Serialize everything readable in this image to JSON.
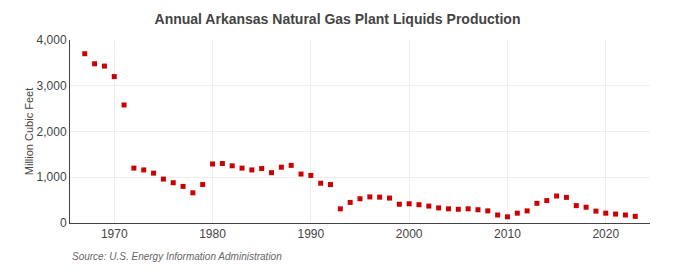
{
  "chart_data": {
    "type": "scatter",
    "title": "Annual Arkansas Natural Gas Plant Liquids Production",
    "ylabel": "Million Cubic Feet",
    "annotations": [
      "Source: U.S. Energy Information Administration"
    ],
    "x": [
      1967,
      1968,
      1969,
      1970,
      1971,
      1972,
      1973,
      1974,
      1975,
      1976,
      1977,
      1978,
      1979,
      1980,
      1981,
      1982,
      1983,
      1984,
      1985,
      1986,
      1987,
      1988,
      1989,
      1990,
      1991,
      1992,
      1993,
      1994,
      1995,
      1996,
      1997,
      1998,
      1999,
      2000,
      2001,
      2002,
      2003,
      2004,
      2005,
      2006,
      2007,
      2008,
      2009,
      2010,
      2011,
      2012,
      2013,
      2014,
      2015,
      2016,
      2017,
      2018,
      2019,
      2020,
      2021,
      2022,
      2023
    ],
    "values": [
      3700,
      3480,
      3430,
      3200,
      2580,
      1200,
      1160,
      1090,
      960,
      880,
      800,
      660,
      840,
      1290,
      1300,
      1250,
      1200,
      1160,
      1190,
      1100,
      1220,
      1260,
      1070,
      1040,
      870,
      840,
      310,
      450,
      530,
      570,
      565,
      545,
      410,
      420,
      400,
      370,
      330,
      310,
      300,
      310,
      290,
      265,
      175,
      135,
      215,
      265,
      430,
      490,
      590,
      560,
      380,
      345,
      260,
      215,
      195,
      175,
      145
    ],
    "color": "#cc0000",
    "marker": "square",
    "xlim": [
      1965.5,
      2024.5
    ],
    "xticks": [
      1970,
      1980,
      1990,
      2000,
      2010,
      2020
    ],
    "ylim": [
      0,
      4000
    ],
    "yticks": [
      0,
      {
        "value": 1000,
        "label": "1,000"
      },
      {
        "value": 2000,
        "label": "2,000"
      },
      {
        "value": 3000,
        "label": "3,000"
      },
      {
        "value": 4000,
        "label": "4,000"
      }
    ],
    "grid": true
  }
}
